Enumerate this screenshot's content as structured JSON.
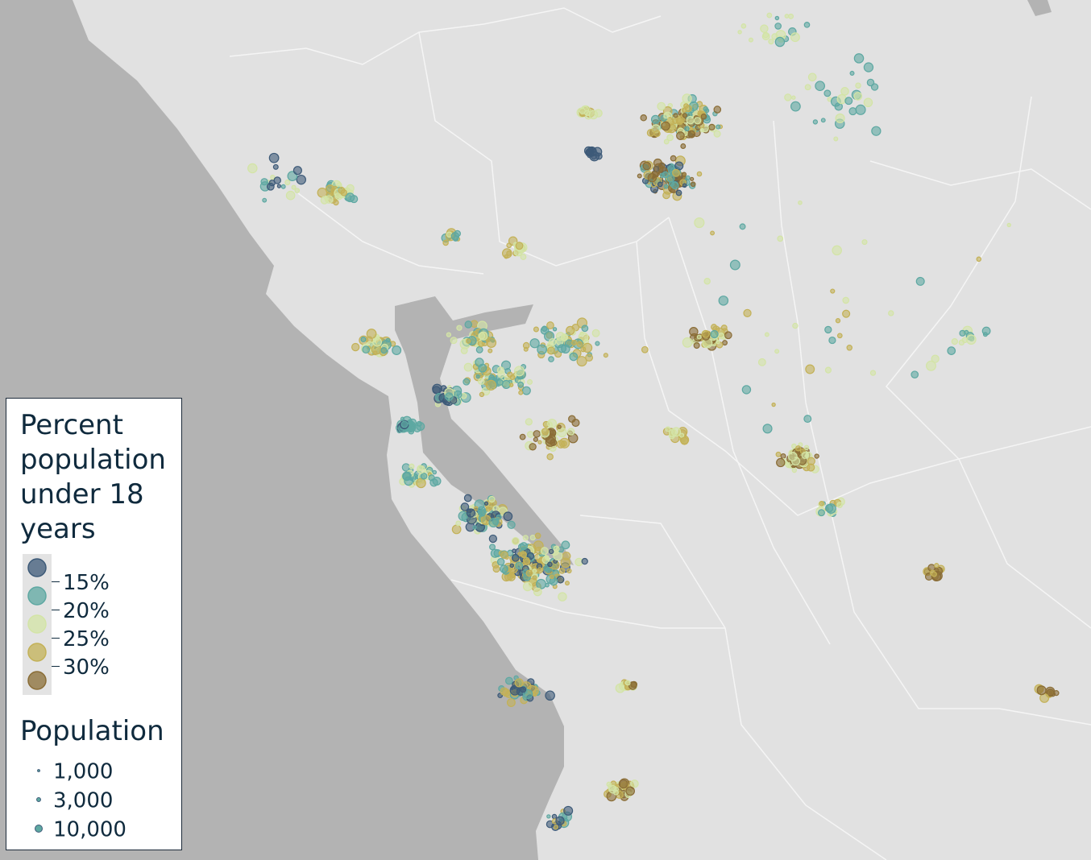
{
  "legend": {
    "color": {
      "title": "Percent population under 18 years",
      "colors": [
        "#3d5a78",
        "#5ea8a2",
        "#d3e4a6",
        "#c3b157",
        "#8a6d36"
      ],
      "breaks": [
        {
          "value": 15,
          "label": "15%"
        },
        {
          "value": 20,
          "label": "20%"
        },
        {
          "value": 25,
          "label": "25%"
        },
        {
          "value": 30,
          "label": "30%"
        }
      ]
    },
    "size": {
      "title": "Population",
      "items": [
        {
          "value": 1000,
          "label": "1,000"
        },
        {
          "value": 3000,
          "label": "3,000"
        },
        {
          "value": 10000,
          "label": "10,000"
        }
      ]
    }
  }
}
